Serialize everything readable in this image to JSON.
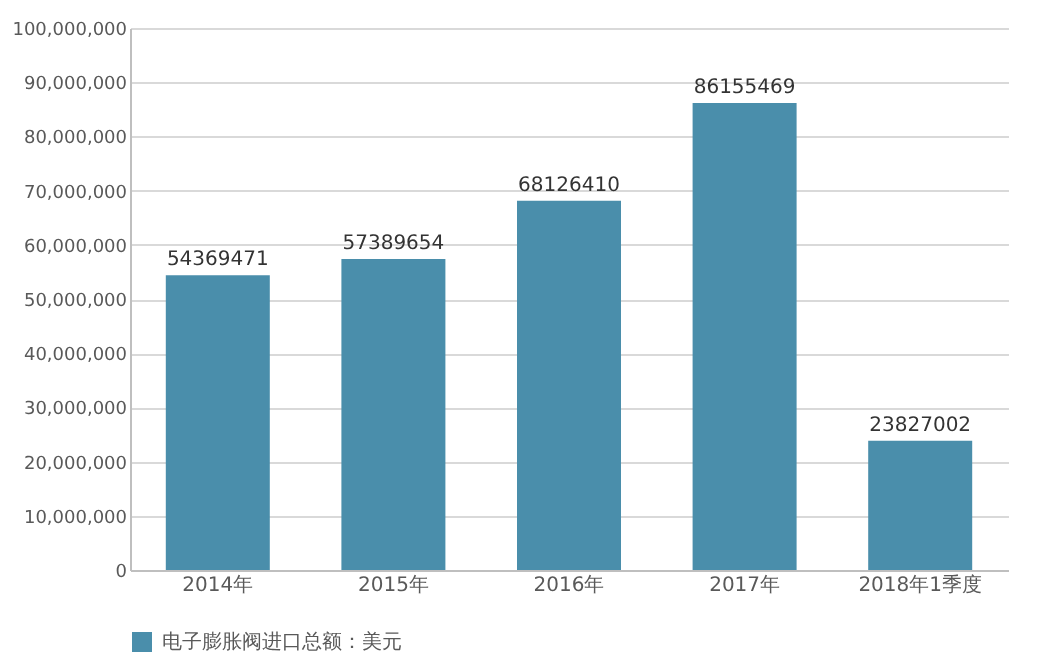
{
  "chart_data": {
    "type": "bar",
    "categories": [
      "2014年",
      "2015年",
      "2016年",
      "2017年",
      "2018年1季度"
    ],
    "series": [
      {
        "name": "电子膨胀阀进口总额：美元",
        "color": "#4a8eab",
        "values": [
          54369471,
          57389654,
          68126410,
          86155469,
          23827002
        ]
      }
    ],
    "ylim": [
      0,
      100000000
    ],
    "yticks": [
      0,
      {
        "value": 10000000,
        "label": "10,000,000"
      },
      {
        "value": 20000000,
        "label": "20,000,000"
      },
      {
        "value": 30000000,
        "label": "30,000,000"
      },
      {
        "value": 40000000,
        "label": "40,000,000"
      },
      {
        "value": 50000000,
        "label": "50,000,000"
      },
      {
        "value": 60000000,
        "label": "60,000,000"
      },
      {
        "value": 70000000,
        "label": "70,000,000"
      },
      {
        "value": 80000000,
        "label": "80,000,000"
      },
      {
        "value": 90000000,
        "label": "90,000,000"
      },
      {
        "value": 100000000,
        "label": "100,000,000"
      }
    ],
    "grid": "y",
    "legend": "bottom",
    "data_labels": true
  }
}
